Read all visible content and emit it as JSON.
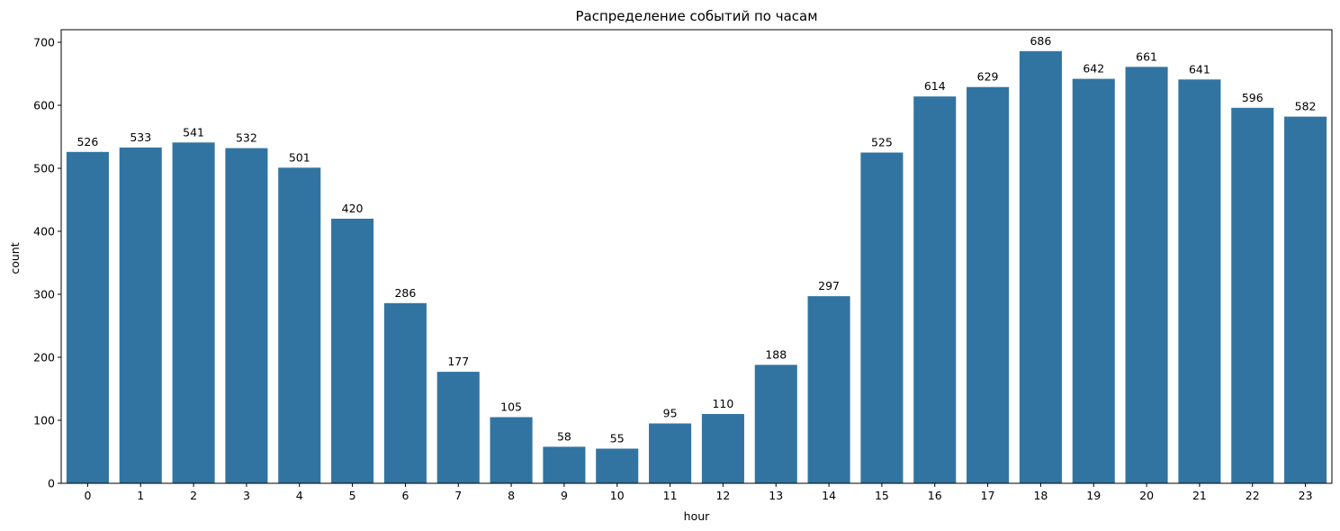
{
  "chart_data": {
    "type": "bar",
    "title": "Распределение событий по часам",
    "xlabel": "hour",
    "ylabel": "count",
    "categories": [
      "0",
      "1",
      "2",
      "3",
      "4",
      "5",
      "6",
      "7",
      "8",
      "9",
      "10",
      "11",
      "12",
      "13",
      "14",
      "15",
      "16",
      "17",
      "18",
      "19",
      "20",
      "21",
      "22",
      "23"
    ],
    "values": [
      526,
      533,
      541,
      532,
      501,
      420,
      286,
      177,
      105,
      58,
      55,
      95,
      110,
      188,
      297,
      525,
      614,
      629,
      686,
      642,
      661,
      641,
      596,
      582
    ],
    "data_labels": [
      "526",
      "533",
      "541",
      "532",
      "501",
      "420",
      "286",
      "177",
      "105",
      "58",
      "55",
      "95",
      "110",
      "188",
      "297",
      "525",
      "614",
      "629",
      "686",
      "642",
      "661",
      "641",
      "596",
      "582"
    ],
    "ylim": [
      0,
      720
    ],
    "yticks": [
      0,
      100,
      200,
      300,
      400,
      500,
      600,
      700
    ],
    "ytick_labels": [
      "0",
      "100",
      "200",
      "300",
      "400",
      "500",
      "600",
      "700"
    ],
    "grid": false,
    "bar_color": "#3274a1"
  }
}
